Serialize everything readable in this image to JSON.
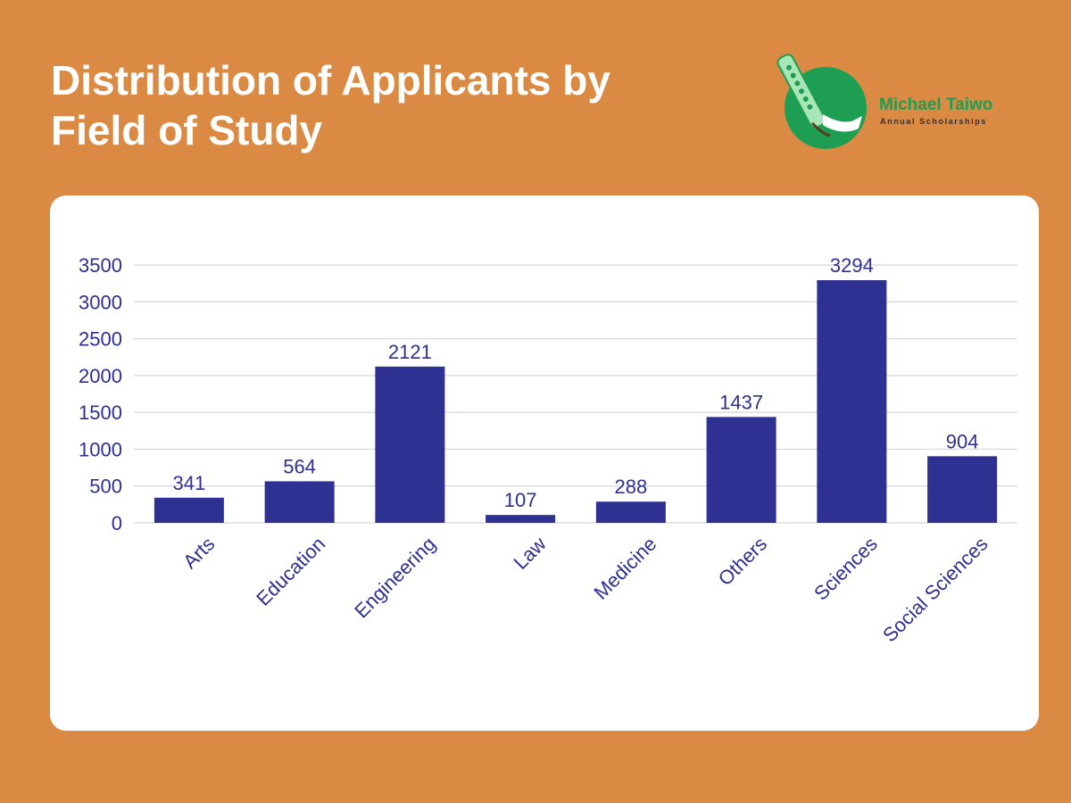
{
  "header": {
    "title_line1": "Distribution of Applicants by",
    "title_line2": "Field of Study"
  },
  "logo": {
    "name": "Michael Taiwo",
    "tagline": "Annual Scholarships",
    "accent_green": "#1E9E52",
    "accent_mint": "#A8E6B8"
  },
  "colors": {
    "background": "#DA8A43",
    "card": "#FFFFFF",
    "bar": "#2E3192",
    "text": "#2E2F8F",
    "grid": "#D5D5DD"
  },
  "chart_data": {
    "type": "bar",
    "title": "Distribution of Applicants by Field of Study",
    "categories": [
      "Arts",
      "Education",
      "Engineering",
      "Law",
      "Medicine",
      "Others",
      "Sciences",
      "Social Sciences"
    ],
    "values": [
      341,
      564,
      2121,
      107,
      288,
      1437,
      3294,
      904
    ],
    "ylim": [
      0,
      3500
    ],
    "yticks": [
      0,
      500,
      1000,
      1500,
      2000,
      2500,
      3000,
      3500
    ],
    "grid": true,
    "xlabel": "",
    "ylabel": ""
  }
}
